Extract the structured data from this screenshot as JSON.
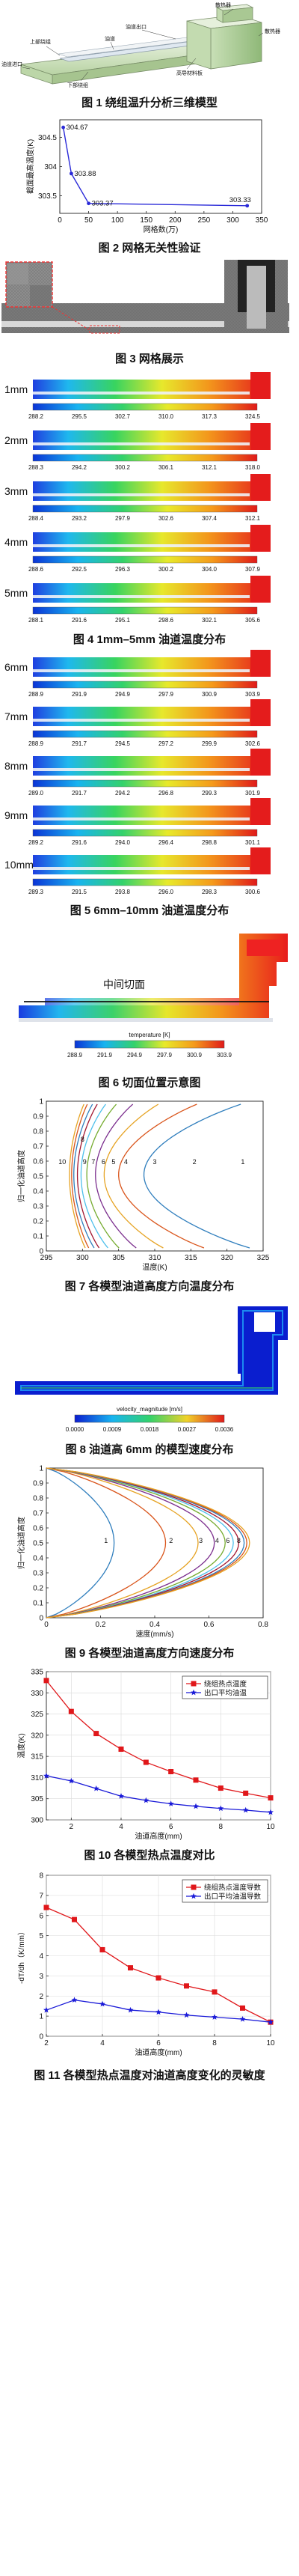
{
  "captions": {
    "f1": "图 1  绕组温升分析三维模型",
    "f2": "图 2  网格无关性验证",
    "f3": "图 3  网格展示",
    "f4": "图 4  1mm–5mm 油道温度分布",
    "f5": "图 5  6mm–10mm 油道温度分布",
    "f6": "图 6  切面位置示意图",
    "f7": "图 7  各模型油道高度方向温度分布",
    "f8": "图 8  油道高 6mm 的模型速度分布",
    "f9": "图 9  各模型油道高度方向速度分布",
    "f10": "图 10  各模型热点温度对比",
    "f11": "图 11  各模型热点温度对油道高度变化的灵敏度"
  },
  "fig1": {
    "labels": [
      "散热器",
      "散热器",
      "油道出口",
      "油道",
      "上部绕组",
      "油道进口",
      "下部绕组",
      "高导材料板"
    ]
  },
  "fig4": {
    "rows": [
      {
        "label": "1mm",
        "ticks": [
          "288.2",
          "295.5",
          "302.7",
          "310.0",
          "317.3",
          "324.5"
        ]
      },
      {
        "label": "2mm",
        "ticks": [
          "288.3",
          "294.2",
          "300.2",
          "306.1",
          "312.1",
          "318.0"
        ]
      },
      {
        "label": "3mm",
        "ticks": [
          "288.4",
          "293.2",
          "297.9",
          "302.6",
          "307.4",
          "312.1"
        ]
      },
      {
        "label": "4mm",
        "ticks": [
          "288.6",
          "292.5",
          "296.3",
          "300.2",
          "304.0",
          "307.9"
        ]
      },
      {
        "label": "5mm",
        "ticks": [
          "288.1",
          "291.6",
          "295.1",
          "298.6",
          "302.1",
          "305.6"
        ]
      }
    ]
  },
  "fig5": {
    "rows": [
      {
        "label": "6mm",
        "ticks": [
          "288.9",
          "291.9",
          "294.9",
          "297.9",
          "300.9",
          "303.9"
        ]
      },
      {
        "label": "7mm",
        "ticks": [
          "288.9",
          "291.7",
          "294.5",
          "297.2",
          "299.9",
          "302.6"
        ]
      },
      {
        "label": "8mm",
        "ticks": [
          "289.0",
          "291.7",
          "294.2",
          "296.8",
          "299.3",
          "301.9"
        ]
      },
      {
        "label": "9mm",
        "ticks": [
          "289.2",
          "291.6",
          "294.0",
          "296.4",
          "298.8",
          "301.1"
        ]
      },
      {
        "label": "10mm",
        "ticks": [
          "289.3",
          "291.5",
          "293.8",
          "296.0",
          "298.3",
          "300.6"
        ]
      }
    ]
  },
  "fig6": {
    "section_label": "中间切面",
    "colorbar_title": "temperature [K]",
    "ticks": [
      "288.9",
      "291.9",
      "294.9",
      "297.9",
      "300.9",
      "303.9"
    ]
  },
  "fig8": {
    "colorbar_title": "velocity_magnitude [m/s]",
    "ticks": [
      "0.0000",
      "0.0009",
      "0.0018",
      "0.0027",
      "0.0036"
    ]
  },
  "chart_data": [
    {
      "id": "fig2",
      "type": "line",
      "title": "",
      "xlabel": "网格数(万)",
      "ylabel": "截面最高温度(K)",
      "xlim": [
        0,
        350
      ],
      "ylim": [
        303.2,
        304.8
      ],
      "xticks": [
        0,
        50,
        100,
        150,
        200,
        250,
        300,
        350
      ],
      "yticks": [
        303.5,
        304,
        304.5
      ],
      "x": [
        6,
        20,
        50,
        325
      ],
      "y": [
        304.67,
        303.88,
        303.37,
        303.33
      ],
      "point_labels": [
        "304.67",
        "303.88",
        "303.37",
        "303.33"
      ],
      "color": "#2a2ad8"
    },
    {
      "id": "fig7",
      "type": "line",
      "title": "",
      "xlabel": "温度(K)",
      "ylabel": "归一化油道高度",
      "xlim": [
        295,
        325
      ],
      "ylim": [
        0,
        1
      ],
      "xticks": [
        295,
        300,
        305,
        310,
        315,
        320,
        325
      ],
      "yticks": [
        0,
        0.1,
        0.2,
        0.3,
        0.4,
        0.5,
        0.6,
        0.7,
        0.8,
        0.9,
        1
      ],
      "series": [
        {
          "name": "1",
          "color": "#2f7ebd",
          "min": 308.5,
          "max": 324.6
        },
        {
          "name": "2",
          "color": "#d9541a",
          "min": 305.0,
          "max": 318.0
        },
        {
          "name": "3",
          "color": "#e6a323",
          "min": 303.0,
          "max": 312.0
        },
        {
          "name": "4",
          "color": "#7c2f8e",
          "min": 301.8,
          "max": 308.0
        },
        {
          "name": "5",
          "color": "#76ac30",
          "min": 300.6,
          "max": 305.5
        },
        {
          "name": "6",
          "color": "#4dbfeb",
          "min": 299.8,
          "max": 303.9
        },
        {
          "name": "7",
          "color": "#a2152f",
          "min": 299.3,
          "max": 302.6
        },
        {
          "name": "8",
          "color": "#2f7ebd",
          "min": 298.8,
          "max": 301.9
        },
        {
          "name": "9",
          "color": "#d9541a",
          "min": 298.5,
          "max": 301.1
        },
        {
          "name": "10",
          "color": "#e6a323",
          "min": 298.2,
          "max": 300.6
        }
      ],
      "series_labels": [
        {
          "text": "1",
          "x": 322.2,
          "y": 0.58
        },
        {
          "text": "2",
          "x": 315.5,
          "y": 0.58
        },
        {
          "text": "3",
          "x": 310.0,
          "y": 0.58
        },
        {
          "text": "4",
          "x": 306.0,
          "y": 0.58
        },
        {
          "text": "5",
          "x": 304.3,
          "y": 0.58
        },
        {
          "text": "6",
          "x": 302.9,
          "y": 0.58
        },
        {
          "text": "7",
          "x": 301.5,
          "y": 0.58
        },
        {
          "text": "8",
          "x": 300.0,
          "y": 0.73
        },
        {
          "text": "9",
          "x": 300.3,
          "y": 0.58
        },
        {
          "text": "10",
          "x": 297.2,
          "y": 0.58
        }
      ]
    },
    {
      "id": "fig9",
      "type": "line",
      "title": "",
      "xlabel": "速度(mm/s)",
      "ylabel": "归一化油道高度",
      "xlim": [
        0,
        0.8
      ],
      "ylim": [
        0,
        1
      ],
      "xticks": [
        0,
        0.2,
        0.4,
        0.6,
        0.8
      ],
      "yticks": [
        0,
        0.1,
        0.2,
        0.3,
        0.4,
        0.5,
        0.6,
        0.7,
        0.8,
        0.9,
        1
      ],
      "series": [
        {
          "name": "1",
          "color": "#2f7ebd",
          "peak": 0.25
        },
        {
          "name": "2",
          "color": "#d9541a",
          "peak": 0.44
        },
        {
          "name": "3",
          "color": "#e6a323",
          "peak": 0.56
        },
        {
          "name": "4",
          "color": "#7c2f8e",
          "peak": 0.62
        },
        {
          "name": "5",
          "color": "#76ac30",
          "peak": 0.66
        },
        {
          "name": "6",
          "color": "#4dbfeb",
          "peak": 0.69
        },
        {
          "name": "7",
          "color": "#a2152f",
          "peak": 0.71
        },
        {
          "name": "8",
          "color": "#2f7ebd",
          "peak": 0.73
        },
        {
          "name": "9",
          "color": "#d9541a",
          "peak": 0.74
        },
        {
          "name": "10",
          "color": "#e6a323",
          "peak": 0.75
        }
      ],
      "series_labels": [
        {
          "text": "1",
          "x": 0.22,
          "y": 0.5
        },
        {
          "text": "2",
          "x": 0.46,
          "y": 0.5
        },
        {
          "text": "3",
          "x": 0.57,
          "y": 0.5
        },
        {
          "text": "4",
          "x": 0.63,
          "y": 0.5
        },
        {
          "text": "6",
          "x": 0.67,
          "y": 0.5
        },
        {
          "text": "8",
          "x": 0.71,
          "y": 0.5
        }
      ]
    },
    {
      "id": "fig10",
      "type": "line",
      "title": "",
      "xlabel": "油道高度(mm)",
      "ylabel": "温度(K)",
      "xlim": [
        1,
        10
      ],
      "ylim": [
        300,
        335
      ],
      "xticks": [
        2,
        4,
        6,
        8,
        10
      ],
      "yticks": [
        300,
        305,
        310,
        315,
        320,
        325,
        330,
        335
      ],
      "legend_position": "top-right",
      "series": [
        {
          "name": "绕组热点温度",
          "color": "#e0171a",
          "marker": "square",
          "x": [
            1,
            2,
            3,
            4,
            5,
            6,
            7,
            8,
            9,
            10
          ],
          "y": [
            332.9,
            325.6,
            320.4,
            316.7,
            313.6,
            311.4,
            309.4,
            307.5,
            306.3,
            305.2
          ]
        },
        {
          "name": "出口平均油温",
          "color": "#1a1ad8",
          "marker": "star",
          "x": [
            1,
            2,
            3,
            4,
            5,
            6,
            7,
            8,
            9,
            10
          ],
          "y": [
            310.4,
            309.2,
            307.4,
            305.6,
            304.6,
            303.8,
            303.2,
            302.7,
            302.3,
            301.8
          ]
        }
      ]
    },
    {
      "id": "fig11",
      "type": "line",
      "title": "",
      "xlabel": "油道高度(mm)",
      "ylabel": "-dT/dh（K/mm）",
      "xlim": [
        2,
        10
      ],
      "ylim": [
        0,
        8
      ],
      "xticks": [
        2,
        4,
        6,
        8,
        10
      ],
      "yticks": [
        0,
        1,
        2,
        3,
        4,
        5,
        6,
        7,
        8
      ],
      "legend_position": "top-right",
      "series": [
        {
          "name": "绕组热点温度导数",
          "color": "#e0171a",
          "marker": "square",
          "x": [
            2,
            3,
            4,
            5,
            6,
            7,
            8,
            9,
            10
          ],
          "y": [
            6.4,
            5.8,
            4.3,
            3.4,
            2.9,
            2.5,
            2.2,
            1.4,
            0.7
          ]
        },
        {
          "name": "出口平均油温导数",
          "color": "#1a1ad8",
          "marker": "star",
          "x": [
            2,
            3,
            4,
            5,
            6,
            7,
            8,
            9,
            10
          ],
          "y": [
            1.3,
            1.8,
            1.6,
            1.3,
            1.2,
            1.05,
            0.95,
            0.85,
            0.7
          ]
        }
      ]
    }
  ]
}
